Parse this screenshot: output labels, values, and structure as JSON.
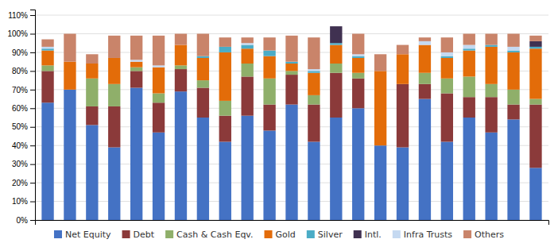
{
  "chart_data": {
    "type": "bar",
    "stacked": true,
    "categories": [
      null,
      null,
      null,
      null,
      null,
      null,
      null,
      null,
      null,
      null,
      null,
      null,
      null,
      null,
      null,
      null,
      null,
      null,
      null,
      null,
      null,
      null,
      null
    ],
    "series": [
      {
        "name": "Net Equity",
        "color": "#4472C4",
        "values": [
          63,
          70,
          51,
          39,
          71,
          47,
          69,
          55,
          42,
          56,
          48,
          62,
          42,
          55,
          60,
          40,
          39,
          65,
          42,
          55,
          47,
          54,
          28
        ]
      },
      {
        "name": "Debt",
        "color": "#8B3A3A",
        "values": [
          17,
          0,
          10,
          22,
          9,
          16,
          12,
          16,
          14,
          21,
          14,
          16,
          20,
          24,
          16,
          0,
          34,
          8,
          26,
          11,
          19,
          8,
          34
        ]
      },
      {
        "name": "Cash & Cash Eqv.",
        "color": "#8FAF6A",
        "values": [
          3,
          0,
          15,
          12,
          2,
          5,
          2,
          4,
          8,
          7,
          14,
          2,
          5,
          5,
          3,
          0,
          0,
          6,
          8,
          11,
          7,
          8,
          3
        ]
      },
      {
        "name": "Gold",
        "color": "#E36C09",
        "values": [
          8,
          15,
          8,
          14,
          3,
          14,
          11,
          12,
          26,
          8,
          12,
          4,
          12,
          10,
          8,
          40,
          16,
          15,
          11,
          14,
          20,
          20,
          27
        ]
      },
      {
        "name": "Silver",
        "color": "#4BACC6",
        "values": [
          1,
          0,
          0,
          0,
          0,
          0,
          0,
          1,
          3,
          2,
          3,
          1,
          1,
          1,
          1,
          0,
          0,
          0,
          1,
          1,
          1,
          1,
          1
        ]
      },
      {
        "name": "Intl.",
        "color": "#403151",
        "values": [
          0,
          0,
          0,
          0,
          0,
          0,
          0,
          0,
          0,
          0,
          0,
          0,
          0,
          9,
          0,
          0,
          0,
          0,
          0,
          0,
          0,
          0,
          3
        ]
      },
      {
        "name": "Infra Trusts",
        "color": "#C5D9F1",
        "values": [
          1,
          0,
          0,
          0,
          1,
          1,
          0,
          0,
          0,
          1,
          0,
          0,
          1,
          0,
          1,
          0,
          0,
          2,
          2,
          2,
          0,
          2,
          0
        ]
      },
      {
        "name": "Others",
        "color": "#C9846A",
        "values": [
          4,
          15,
          5,
          12,
          13,
          16,
          6,
          12,
          5,
          3,
          7,
          14,
          17,
          0,
          11,
          9,
          5,
          2,
          8,
          6,
          6,
          7,
          3
        ]
      }
    ],
    "ylim": [
      0,
      113
    ],
    "yticks": [
      {
        "value": 0,
        "label": "0%"
      },
      {
        "value": 10,
        "label": "10%"
      },
      {
        "value": 20,
        "label": "20%"
      },
      {
        "value": 30,
        "label": "30%"
      },
      {
        "value": 40,
        "label": "40%"
      },
      {
        "value": 50,
        "label": "50%"
      },
      {
        "value": 60,
        "label": "60%"
      },
      {
        "value": 70,
        "label": "70%"
      },
      {
        "value": 80,
        "label": "80%"
      },
      {
        "value": 90,
        "label": "90%"
      },
      {
        "value": 100,
        "label": "100%"
      },
      {
        "value": 110,
        "label": "110%"
      }
    ],
    "grid": true,
    "legend": "bottom",
    "tick_labels": "y"
  }
}
